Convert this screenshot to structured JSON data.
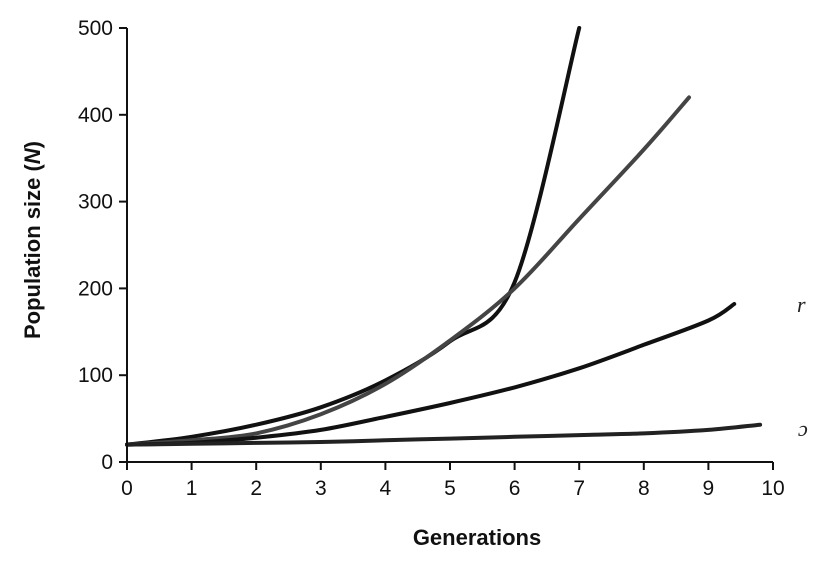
{
  "chart_data": {
    "type": "line",
    "title": "",
    "xlabel": "Generations",
    "ylabel_parts": {
      "prefix": "Population size (",
      "symbol": "N",
      "suffix": ")"
    },
    "xlim": [
      0,
      10
    ],
    "ylim": [
      0,
      500
    ],
    "xticks": [
      0,
      1,
      2,
      3,
      4,
      5,
      6,
      7,
      8,
      9,
      10
    ],
    "yticks": [
      0,
      100,
      200,
      300,
      400,
      500
    ],
    "grid": false,
    "legend": "none",
    "series": [
      {
        "color": "#111111",
        "points": [
          [
            0,
            20
          ],
          [
            1,
            29
          ],
          [
            2,
            43
          ],
          [
            3,
            63
          ],
          [
            4,
            94
          ],
          [
            5,
            139
          ],
          [
            6,
            207
          ],
          [
            7,
            500
          ]
        ]
      },
      {
        "color": "#444444",
        "points": [
          [
            0,
            20
          ],
          [
            1,
            25
          ],
          [
            2,
            33
          ],
          [
            3,
            55
          ],
          [
            4,
            90
          ],
          [
            5,
            140
          ],
          [
            6,
            200
          ],
          [
            7,
            280
          ],
          [
            8,
            360
          ],
          [
            8.7,
            420
          ]
        ]
      },
      {
        "color": "#111111",
        "points": [
          [
            0,
            20
          ],
          [
            1,
            22
          ],
          [
            2,
            28
          ],
          [
            3,
            37
          ],
          [
            4,
            52
          ],
          [
            5,
            68
          ],
          [
            6,
            86
          ],
          [
            7,
            108
          ],
          [
            8,
            135
          ],
          [
            9,
            163
          ],
          [
            9.4,
            182
          ]
        ]
      },
      {
        "color": "#222222",
        "points": [
          [
            0,
            20
          ],
          [
            1,
            21
          ],
          [
            2,
            22
          ],
          [
            3,
            23
          ],
          [
            4,
            25
          ],
          [
            5,
            27
          ],
          [
            6,
            29
          ],
          [
            7,
            31
          ],
          [
            8,
            33
          ],
          [
            9,
            37
          ],
          [
            9.8,
            43
          ]
        ]
      }
    ],
    "annotations": [
      "r",
      "ɔ"
    ]
  }
}
